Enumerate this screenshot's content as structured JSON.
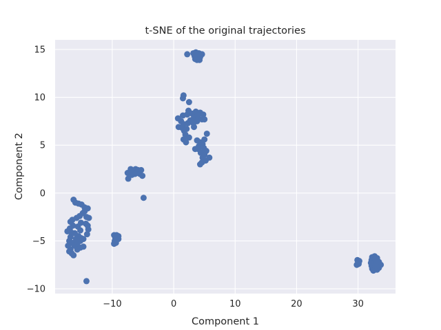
{
  "chart_data": {
    "type": "scatter",
    "title": "t-SNE of the original trajectories",
    "xlabel": "Component 1",
    "ylabel": "Component 2",
    "xlim": [
      -19.3,
      36.1
    ],
    "ylim": [
      -10.5,
      16.0
    ],
    "xticks": [
      -10,
      0,
      10,
      20,
      30
    ],
    "yticks": [
      -10,
      -5,
      0,
      5,
      10,
      15
    ],
    "grid": true,
    "background_color": "#eaeaf2",
    "marker_color": "#4c72b0",
    "series": [
      {
        "points": [
          [
            2.2,
            14.5
          ],
          [
            3.2,
            14.6
          ],
          [
            3.6,
            14.7
          ],
          [
            4.1,
            14.6
          ],
          [
            4.6,
            14.5
          ],
          [
            3.4,
            14.3
          ],
          [
            3.9,
            14.3
          ],
          [
            4.3,
            14.2
          ],
          [
            3.5,
            14.0
          ],
          [
            3.8,
            13.9
          ],
          [
            4.2,
            13.9
          ],
          [
            3.6,
            14.5
          ],
          [
            1.6,
            10.2
          ],
          [
            1.5,
            9.9
          ],
          [
            2.5,
            9.5
          ],
          [
            0.7,
            7.8
          ],
          [
            1.5,
            8.1
          ],
          [
            2.2,
            8.2
          ],
          [
            3.0,
            8.3
          ],
          [
            3.6,
            8.5
          ],
          [
            4.3,
            8.4
          ],
          [
            4.8,
            8.2
          ],
          [
            3.3,
            7.9
          ],
          [
            4.0,
            7.8
          ],
          [
            4.6,
            7.7
          ],
          [
            5.0,
            7.7
          ],
          [
            3.8,
            7.5
          ],
          [
            1.2,
            7.5
          ],
          [
            1.6,
            7.2
          ],
          [
            2.3,
            7.3
          ],
          [
            3.2,
            7.3
          ],
          [
            0.8,
            6.9
          ],
          [
            1.4,
            6.8
          ],
          [
            2.1,
            6.7
          ],
          [
            1.7,
            6.5
          ],
          [
            1.9,
            6.1
          ],
          [
            2.5,
            5.8
          ],
          [
            1.6,
            5.6
          ],
          [
            2.0,
            5.3
          ],
          [
            3.3,
            6.9
          ],
          [
            2.7,
            7.6
          ],
          [
            2.4,
            8.6
          ],
          [
            3.8,
            5.5
          ],
          [
            4.3,
            5.3
          ],
          [
            5.0,
            5.6
          ],
          [
            5.4,
            6.2
          ],
          [
            4.7,
            5.1
          ],
          [
            4.1,
            4.9
          ],
          [
            3.5,
            4.6
          ],
          [
            4.9,
            4.7
          ],
          [
            4.4,
            4.2
          ],
          [
            5.0,
            4.0
          ],
          [
            4.7,
            3.7
          ],
          [
            5.2,
            3.4
          ],
          [
            5.8,
            3.7
          ],
          [
            4.3,
            3.0
          ],
          [
            4.6,
            3.2
          ],
          [
            5.3,
            4.4
          ],
          [
            4.0,
            4.6
          ],
          [
            3.9,
            8.1
          ],
          [
            -7.0,
            2.5
          ],
          [
            -6.2,
            2.5
          ],
          [
            -5.8,
            2.4
          ],
          [
            -7.5,
            2.1
          ],
          [
            -6.5,
            2.2
          ],
          [
            -6.0,
            2.1
          ],
          [
            -5.3,
            2.4
          ],
          [
            -6.8,
            1.9
          ],
          [
            -5.5,
            2.0
          ],
          [
            -5.1,
            1.8
          ],
          [
            -7.4,
            1.5
          ],
          [
            -6.3,
            2.0
          ],
          [
            -4.9,
            -0.5
          ],
          [
            -16.3,
            -0.7
          ],
          [
            -16.0,
            -1.0
          ],
          [
            -15.5,
            -1.1
          ],
          [
            -15.0,
            -1.2
          ],
          [
            -14.5,
            -1.5
          ],
          [
            -14.0,
            -1.6
          ],
          [
            -14.5,
            -1.9
          ],
          [
            -14.8,
            -2.1
          ],
          [
            -15.3,
            -2.4
          ],
          [
            -15.8,
            -2.6
          ],
          [
            -14.2,
            -2.5
          ],
          [
            -13.8,
            -2.6
          ],
          [
            -16.5,
            -2.8
          ],
          [
            -16.8,
            -3.0
          ],
          [
            -15.1,
            -3.1
          ],
          [
            -14.3,
            -3.2
          ],
          [
            -14.0,
            -3.4
          ],
          [
            -16.4,
            -3.4
          ],
          [
            -16.9,
            -3.7
          ],
          [
            -15.6,
            -3.5
          ],
          [
            -15.2,
            -3.9
          ],
          [
            -13.9,
            -3.8
          ],
          [
            -17.3,
            -4.0
          ],
          [
            -16.7,
            -4.1
          ],
          [
            -16.1,
            -4.2
          ],
          [
            -15.5,
            -4.5
          ],
          [
            -14.1,
            -4.3
          ],
          [
            -16.8,
            -4.6
          ],
          [
            -15.9,
            -4.8
          ],
          [
            -15.1,
            -4.7
          ],
          [
            -14.7,
            -4.8
          ],
          [
            -17.0,
            -5.0
          ],
          [
            -16.5,
            -5.2
          ],
          [
            -15.7,
            -5.3
          ],
          [
            -15.2,
            -5.0
          ],
          [
            -17.2,
            -5.5
          ],
          [
            -16.2,
            -5.5
          ],
          [
            -14.7,
            -5.6
          ],
          [
            -16.8,
            -5.9
          ],
          [
            -15.7,
            -5.9
          ],
          [
            -15.2,
            -5.7
          ],
          [
            -17.0,
            -6.1
          ],
          [
            -16.6,
            -6.3
          ],
          [
            -16.3,
            -6.5
          ],
          [
            -14.2,
            -9.2
          ],
          [
            -9.7,
            -4.4
          ],
          [
            -9.3,
            -4.4
          ],
          [
            -9.0,
            -4.5
          ],
          [
            -9.5,
            -4.7
          ],
          [
            -9.0,
            -4.8
          ],
          [
            -9.6,
            -5.0
          ],
          [
            -9.4,
            -5.2
          ],
          [
            -9.7,
            -5.3
          ],
          [
            29.9,
            -7.0
          ],
          [
            30.2,
            -7.1
          ],
          [
            30.0,
            -7.3
          ],
          [
            29.8,
            -7.5
          ],
          [
            30.1,
            -7.4
          ],
          [
            32.3,
            -6.7
          ],
          [
            32.7,
            -6.6
          ],
          [
            33.1,
            -6.8
          ],
          [
            32.2,
            -7.0
          ],
          [
            32.6,
            -7.0
          ],
          [
            33.0,
            -7.1
          ],
          [
            33.4,
            -7.2
          ],
          [
            32.1,
            -7.3
          ],
          [
            32.5,
            -7.3
          ],
          [
            32.9,
            -7.4
          ],
          [
            33.3,
            -7.4
          ],
          [
            33.7,
            -7.5
          ],
          [
            32.2,
            -7.6
          ],
          [
            32.6,
            -7.7
          ],
          [
            33.0,
            -7.7
          ],
          [
            33.4,
            -7.8
          ],
          [
            32.3,
            -7.9
          ],
          [
            32.7,
            -8.0
          ],
          [
            33.1,
            -8.0
          ],
          [
            32.5,
            -8.1
          ],
          [
            32.9,
            -7.6
          ],
          [
            32.8,
            -6.9
          ]
        ]
      }
    ]
  }
}
